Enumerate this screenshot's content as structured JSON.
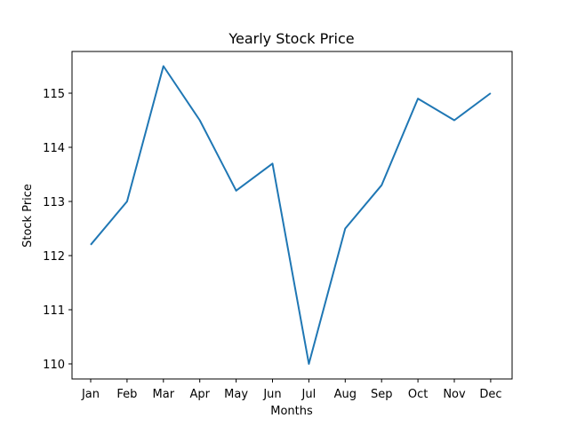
{
  "chart_data": {
    "type": "line",
    "title": "Yearly Stock Price",
    "xlabel": "Months",
    "ylabel": "Stock Price",
    "categories": [
      "Jan",
      "Feb",
      "Mar",
      "Apr",
      "May",
      "Jun",
      "Jul",
      "Aug",
      "Sep",
      "Oct",
      "Nov",
      "Dec"
    ],
    "series": [
      {
        "name": "Stock Price",
        "color": "#1f77b4",
        "values": [
          112.2,
          113.0,
          115.5,
          114.5,
          113.2,
          113.7,
          110.0,
          112.5,
          113.3,
          114.9,
          114.5,
          115.0
        ]
      }
    ],
    "yticks": [
      110,
      111,
      112,
      113,
      114,
      115
    ],
    "ylim": [
      109.75,
      115.75
    ],
    "grid": false,
    "legend": null
  }
}
